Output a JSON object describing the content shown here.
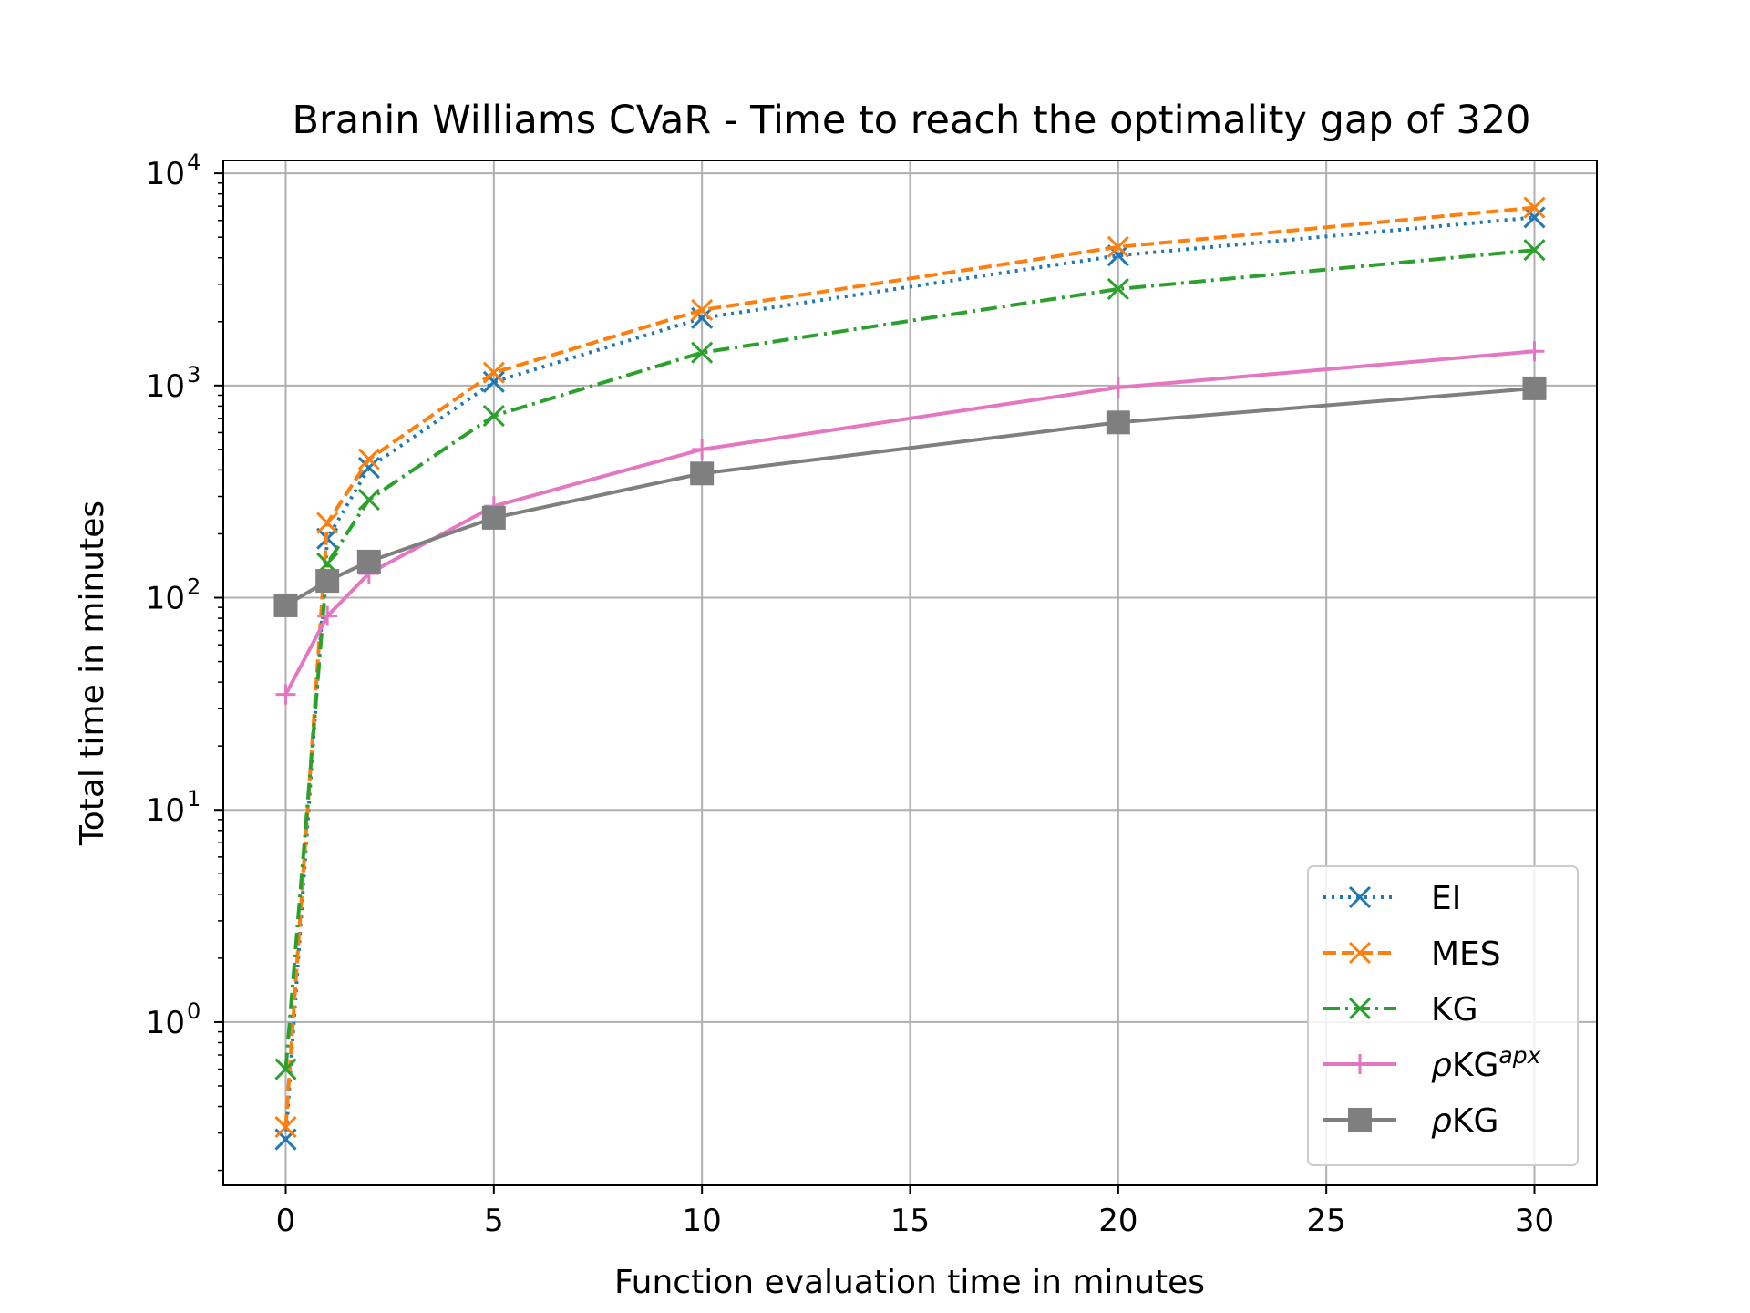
{
  "chart_data": {
    "type": "line",
    "title": "Branin Williams CVaR - Time to reach the optimality gap of 320",
    "xlabel": "Function evaluation time in minutes",
    "ylabel": "Total time in minutes",
    "x": [
      0,
      1,
      2,
      5,
      10,
      20,
      30
    ],
    "xlim": [
      -1.5,
      31.5
    ],
    "ylim": [
      0.17,
      11500
    ],
    "yscale": "log",
    "xticks": [
      0,
      5,
      10,
      15,
      20,
      25,
      30
    ],
    "yticks": [
      {
        "value": 1,
        "base": "10",
        "exp": "0"
      },
      {
        "value": 10,
        "base": "10",
        "exp": "1"
      },
      {
        "value": 100,
        "base": "10",
        "exp": "2"
      },
      {
        "value": 1000,
        "base": "10",
        "exp": "3"
      },
      {
        "value": 10000,
        "base": "10",
        "exp": "4"
      }
    ],
    "grid": true,
    "legend_position": "lower-right",
    "series": [
      {
        "name": "EI",
        "color": "#1f77b4",
        "dash": "dotted",
        "marker": "x",
        "values": [
          0.28,
          190,
          410,
          1040,
          2080,
          4100,
          6200
        ]
      },
      {
        "name": "MES",
        "color": "#ff7f0e",
        "dash": "dashed",
        "marker": "x",
        "values": [
          0.32,
          225,
          450,
          1150,
          2270,
          4500,
          6900
        ]
      },
      {
        "name": "KG",
        "color": "#2ca02c",
        "dash": "dashdot",
        "marker": "x",
        "values": [
          0.6,
          145,
          290,
          720,
          1430,
          2850,
          4350
        ]
      },
      {
        "name": "ρKG",
        "name_sup": "apx",
        "color": "#e377c2",
        "dash": "solid",
        "marker": "plus",
        "values": [
          35,
          82,
          130,
          270,
          500,
          980,
          1450
        ]
      },
      {
        "name": "ρKG",
        "color": "#7f7f7f",
        "dash": "solid",
        "marker": "square",
        "values": [
          92,
          120,
          148,
          238,
          385,
          670,
          970
        ]
      }
    ]
  }
}
